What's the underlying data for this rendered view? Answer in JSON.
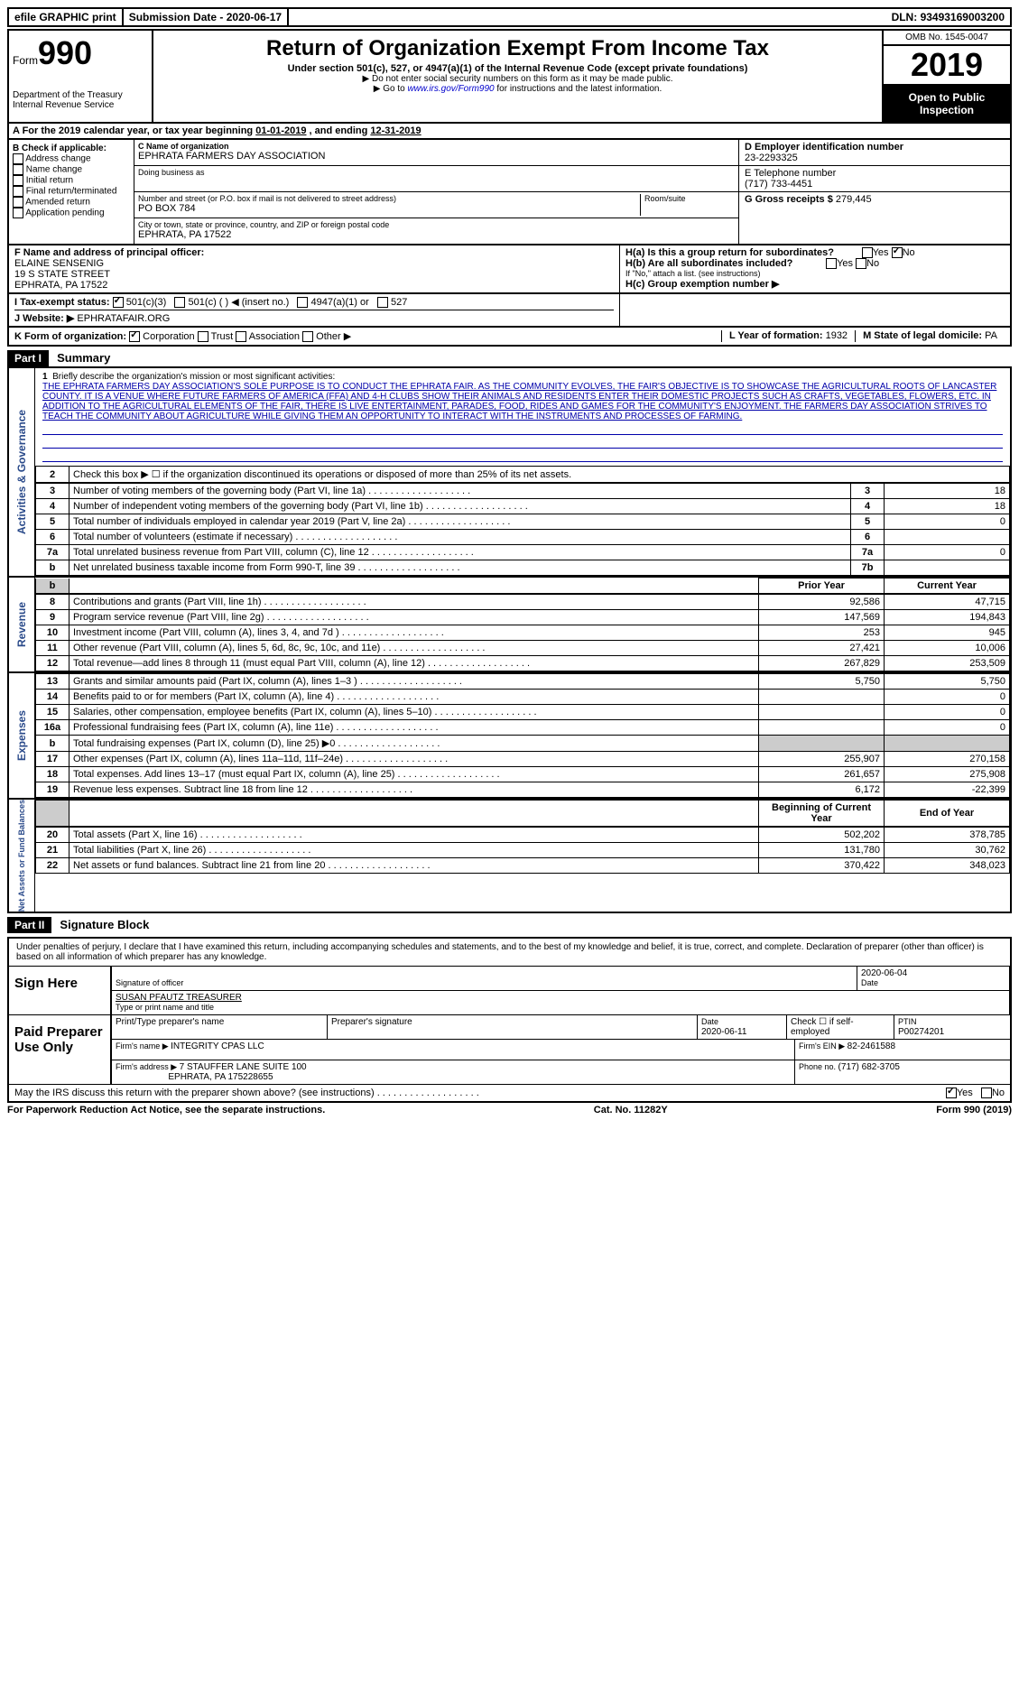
{
  "topbar": {
    "efile": "efile GRAPHIC print",
    "submission_label": "Submission Date - ",
    "submission_date": "2020-06-17",
    "dln_label": "DLN: ",
    "dln": "93493169003200"
  },
  "header": {
    "form_word": "Form",
    "form_number": "990",
    "dept": "Department of the Treasury\nInternal Revenue Service",
    "title": "Return of Organization Exempt From Income Tax",
    "subtitle": "Under section 501(c), 527, or 4947(a)(1) of the Internal Revenue Code (except private foundations)",
    "instr1": "▶ Do not enter social security numbers on this form as it may be made public.",
    "instr2_pre": "▶ Go to ",
    "instr2_link": "www.irs.gov/Form990",
    "instr2_post": " for instructions and the latest information.",
    "omb": "OMB No. 1545-0047",
    "year": "2019",
    "open": "Open to Public Inspection"
  },
  "rowA": {
    "text_pre": "A For the 2019 calendar year, or tax year beginning ",
    "begin": "01-01-2019",
    "mid": " , and ending ",
    "end": "12-31-2019"
  },
  "colB": {
    "label": "B Check if applicable:",
    "items": [
      "Address change",
      "Name change",
      "Initial return",
      "Final return/terminated",
      "Amended return",
      "Application pending"
    ]
  },
  "colC": {
    "name_label": "C Name of organization",
    "name": "EPHRATA FARMERS DAY ASSOCIATION",
    "dba_label": "Doing business as",
    "dba": "",
    "street_label": "Number and street (or P.O. box if mail is not delivered to street address)",
    "room_label": "Room/suite",
    "street": "PO BOX 784",
    "city_label": "City or town, state or province, country, and ZIP or foreign postal code",
    "city": "EPHRATA, PA  17522"
  },
  "colDE": {
    "d_label": "D Employer identification number",
    "ein": "23-2293325",
    "e_label": "E Telephone number",
    "phone": "(717) 733-4451",
    "g_label": "G Gross receipts $ ",
    "gross": "279,445"
  },
  "rowF": {
    "label": "F  Name and address of principal officer:",
    "name": "ELAINE SENSENIG",
    "addr1": "19 S STATE STREET",
    "addr2": "EPHRATA, PA  17522"
  },
  "rowH": {
    "ha": "H(a)  Is this a group return for subordinates?",
    "hb": "H(b)  Are all subordinates included?",
    "hb_note": "If \"No,\" attach a list. (see instructions)",
    "hc": "H(c)  Group exemption number ▶",
    "yes": "Yes",
    "no": "No"
  },
  "rowI": {
    "label": "I  Tax-exempt status:",
    "opt1": "501(c)(3)",
    "opt2": "501(c) (  ) ◀ (insert no.)",
    "opt3": "4947(a)(1) or",
    "opt4": "527"
  },
  "rowJ": {
    "label": "J  Website: ▶",
    "value": "EPHRATAFAIR.ORG"
  },
  "rowK": {
    "label": "K Form of organization:",
    "opts": [
      "Corporation",
      "Trust",
      "Association",
      "Other ▶"
    ],
    "l_label": "L Year of formation: ",
    "l_value": "1932",
    "m_label": "M State of legal domicile: ",
    "m_value": "PA"
  },
  "part1": {
    "header": "Part I",
    "title": "Summary",
    "tab_ag": "Activities & Governance",
    "tab_rev": "Revenue",
    "tab_exp": "Expenses",
    "tab_net": "Net Assets or Fund Balances",
    "line1_label": "Briefly describe the organization's mission or most significant activities:",
    "mission": "THE EPHRATA FARMERS DAY ASSOCIATION'S SOLE PURPOSE IS TO CONDUCT THE EPHRATA FAIR. AS THE COMMUNITY EVOLVES, THE FAIR'S OBJECTIVE IS TO SHOWCASE THE AGRICULTURAL ROOTS OF LANCASTER COUNTY. IT IS A VENUE WHERE FUTURE FARMERS OF AMERICA (FFA) AND 4-H CLUBS SHOW THEIR ANIMALS AND RESIDENTS ENTER THEIR DOMESTIC PROJECTS SUCH AS CRAFTS, VEGETABLES, FLOWERS, ETC. IN ADDITION TO THE AGRICULTURAL ELEMENTS OF THE FAIR, THERE IS LIVE ENTERTAINMENT, PARADES, FOOD, RIDES AND GAMES FOR THE COMMUNITY'S ENJOYMENT. THE FARMERS DAY ASSOCIATION STRIVES TO TEACH THE COMMUNITY ABOUT AGRICULTURE WHILE GIVING THEM AN OPPORTUNITY TO INTERACT WITH THE INSTRUMENTS AND PROCESSES OF FARMING.",
    "line2": "Check this box ▶ ☐ if the organization discontinued its operations or disposed of more than 25% of its net assets.",
    "prior_year": "Prior Year",
    "current_year": "Current Year",
    "begin_year": "Beginning of Current Year",
    "end_year": "End of Year",
    "rows_ag": [
      {
        "n": "3",
        "desc": "Number of voting members of the governing body (Part VI, line 1a)",
        "box": "3",
        "val": "18"
      },
      {
        "n": "4",
        "desc": "Number of independent voting members of the governing body (Part VI, line 1b)",
        "box": "4",
        "val": "18"
      },
      {
        "n": "5",
        "desc": "Total number of individuals employed in calendar year 2019 (Part V, line 2a)",
        "box": "5",
        "val": "0"
      },
      {
        "n": "6",
        "desc": "Total number of volunteers (estimate if necessary)",
        "box": "6",
        "val": ""
      },
      {
        "n": "7a",
        "desc": "Total unrelated business revenue from Part VIII, column (C), line 12",
        "box": "7a",
        "val": "0"
      },
      {
        "n": "b",
        "desc": "Net unrelated business taxable income from Form 990-T, line 39",
        "box": "7b",
        "val": ""
      }
    ],
    "rows_rev": [
      {
        "n": "8",
        "desc": "Contributions and grants (Part VIII, line 1h)",
        "py": "92,586",
        "cy": "47,715"
      },
      {
        "n": "9",
        "desc": "Program service revenue (Part VIII, line 2g)",
        "py": "147,569",
        "cy": "194,843"
      },
      {
        "n": "10",
        "desc": "Investment income (Part VIII, column (A), lines 3, 4, and 7d )",
        "py": "253",
        "cy": "945"
      },
      {
        "n": "11",
        "desc": "Other revenue (Part VIII, column (A), lines 5, 6d, 8c, 9c, 10c, and 11e)",
        "py": "27,421",
        "cy": "10,006"
      },
      {
        "n": "12",
        "desc": "Total revenue—add lines 8 through 11 (must equal Part VIII, column (A), line 12)",
        "py": "267,829",
        "cy": "253,509"
      }
    ],
    "rows_exp": [
      {
        "n": "13",
        "desc": "Grants and similar amounts paid (Part IX, column (A), lines 1–3 )",
        "py": "5,750",
        "cy": "5,750"
      },
      {
        "n": "14",
        "desc": "Benefits paid to or for members (Part IX, column (A), line 4)",
        "py": "",
        "cy": "0"
      },
      {
        "n": "15",
        "desc": "Salaries, other compensation, employee benefits (Part IX, column (A), lines 5–10)",
        "py": "",
        "cy": "0"
      },
      {
        "n": "16a",
        "desc": "Professional fundraising fees (Part IX, column (A), line 11e)",
        "py": "",
        "cy": "0"
      },
      {
        "n": "b",
        "desc": "Total fundraising expenses (Part IX, column (D), line 25) ▶0",
        "py": "shade",
        "cy": "shade"
      },
      {
        "n": "17",
        "desc": "Other expenses (Part IX, column (A), lines 11a–11d, 11f–24e)",
        "py": "255,907",
        "cy": "270,158"
      },
      {
        "n": "18",
        "desc": "Total expenses. Add lines 13–17 (must equal Part IX, column (A), line 25)",
        "py": "261,657",
        "cy": "275,908"
      },
      {
        "n": "19",
        "desc": "Revenue less expenses. Subtract line 18 from line 12",
        "py": "6,172",
        "cy": "-22,399"
      }
    ],
    "rows_net": [
      {
        "n": "20",
        "desc": "Total assets (Part X, line 16)",
        "py": "502,202",
        "cy": "378,785"
      },
      {
        "n": "21",
        "desc": "Total liabilities (Part X, line 26)",
        "py": "131,780",
        "cy": "30,762"
      },
      {
        "n": "22",
        "desc": "Net assets or fund balances. Subtract line 21 from line 20",
        "py": "370,422",
        "cy": "348,023"
      }
    ]
  },
  "part2": {
    "header": "Part II",
    "title": "Signature Block",
    "declaration": "Under penalties of perjury, I declare that I have examined this return, including accompanying schedules and statements, and to the best of my knowledge and belief, it is true, correct, and complete. Declaration of preparer (other than officer) is based on all information of which preparer has any knowledge.",
    "sign_here": "Sign Here",
    "sig_officer": "Signature of officer",
    "date_label": "Date",
    "sig_date": "2020-06-04",
    "name_title": "SUSAN PFAUTZ  TREASURER",
    "type_name": "Type or print name and title",
    "paid_prep": "Paid Preparer Use Only",
    "print_name_label": "Print/Type preparer's name",
    "prep_sig_label": "Preparer's signature",
    "prep_date_label": "Date",
    "prep_date": "2020-06-11",
    "self_emp": "Check ☐ if self-employed",
    "ptin_label": "PTIN",
    "ptin": "P00274201",
    "firm_name_label": "Firm's name    ▶ ",
    "firm_name": "INTEGRITY CPAS LLC",
    "firm_ein_label": "Firm's EIN ▶ ",
    "firm_ein": "82-2461588",
    "firm_addr_label": "Firm's address ▶ ",
    "firm_addr1": "7 STAUFFER LANE SUITE 100",
    "firm_addr2": "EPHRATA, PA  175228655",
    "phone_label": "Phone no. ",
    "phone": "(717) 682-3705",
    "may_irs": "May the IRS discuss this return with the preparer shown above? (see instructions)",
    "yes": "Yes",
    "no": "No"
  },
  "footer": {
    "left": "For Paperwork Reduction Act Notice, see the separate instructions.",
    "center": "Cat. No. 11282Y",
    "right": "Form 990 (2019)"
  }
}
